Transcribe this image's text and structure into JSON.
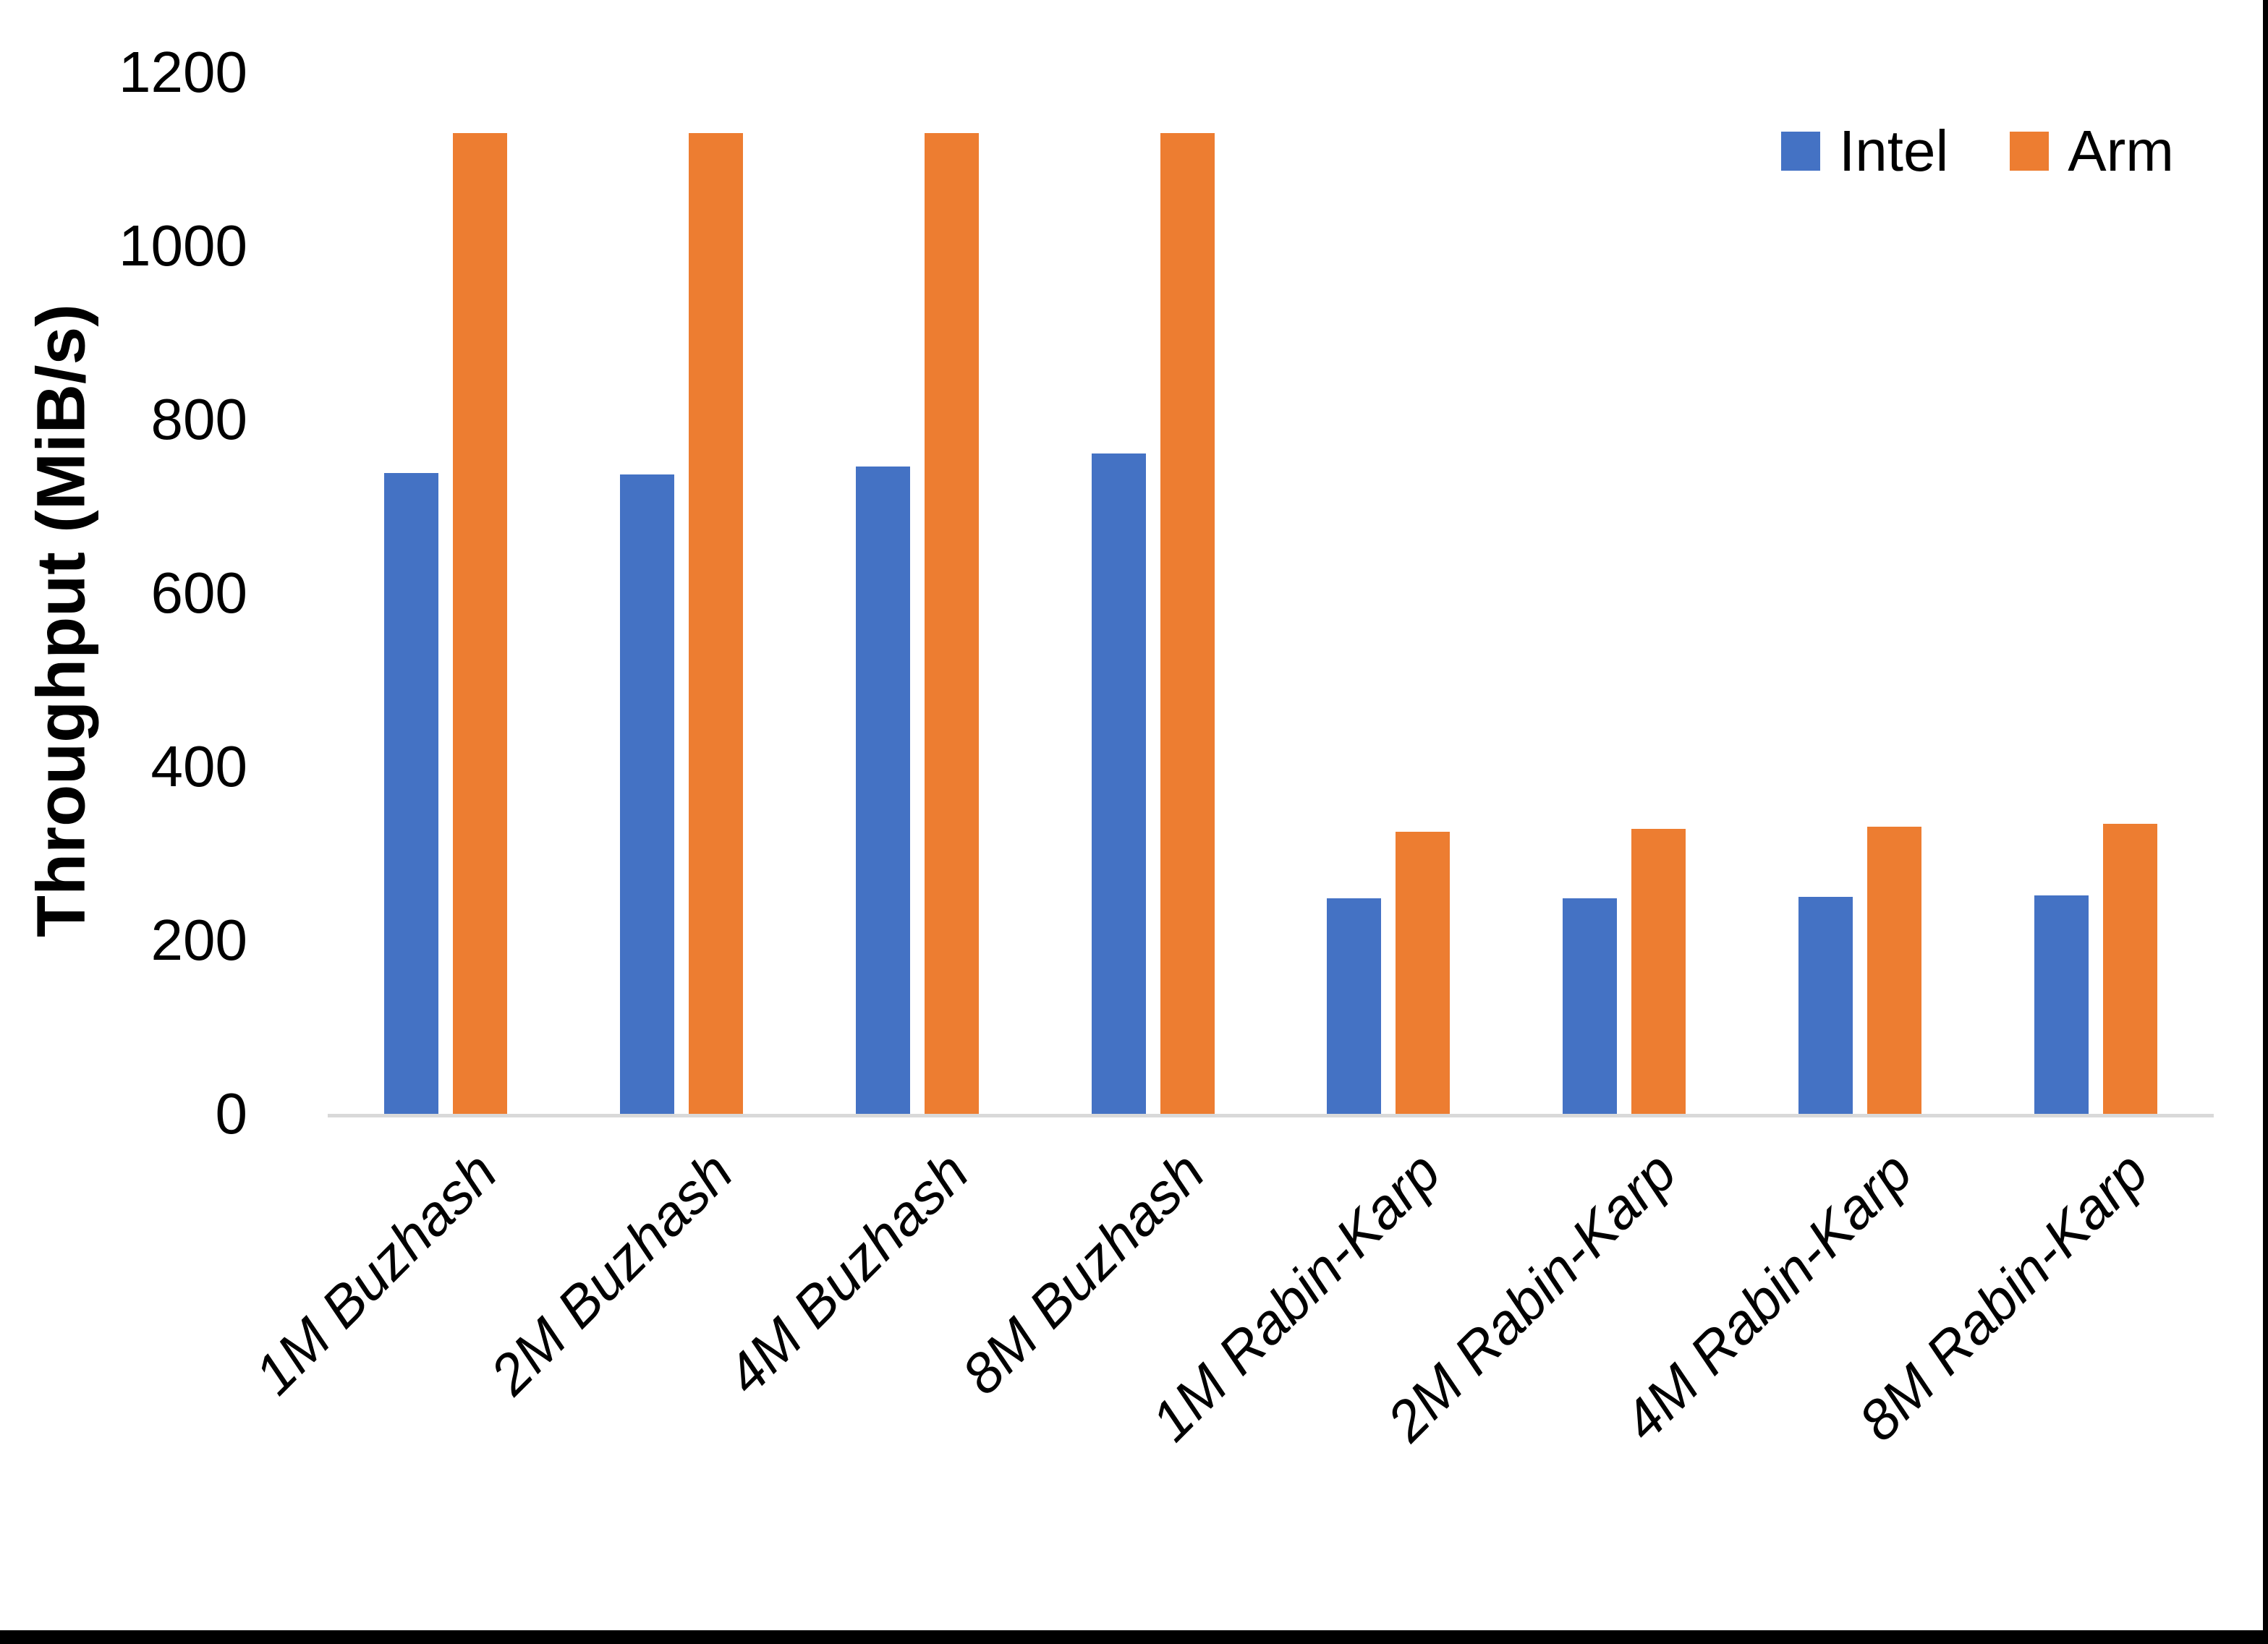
{
  "chart_data": {
    "type": "bar",
    "title": "",
    "xlabel": "",
    "ylabel": "Throughput (MiB/s)",
    "ylim": [
      0,
      1200
    ],
    "yticks": [
      0,
      200,
      400,
      600,
      800,
      1000,
      1200
    ],
    "grid": false,
    "legend_position": "top-right",
    "categories": [
      "1M Buzhash",
      "2M Buzhash",
      "4M Buzhash",
      "8M Buzhash",
      "1M Rabin-Karp",
      "2M Rabin-Karp",
      "4M Rabin-Karp",
      "8M Rabin-Karp"
    ],
    "series": [
      {
        "name": "Intel",
        "color": "#4472C4",
        "values": [
          738,
          737,
          746,
          761,
          248,
          248,
          250,
          252
        ]
      },
      {
        "name": "Arm",
        "color": "#ED7D31",
        "values": [
          1130,
          1130,
          1130,
          1130,
          325,
          328,
          331,
          334
        ]
      }
    ],
    "axis_line_color": "#D9D9D9",
    "text_color": "#000000",
    "background_color": "#FFFFFF",
    "frame_border_color": "#000000"
  }
}
